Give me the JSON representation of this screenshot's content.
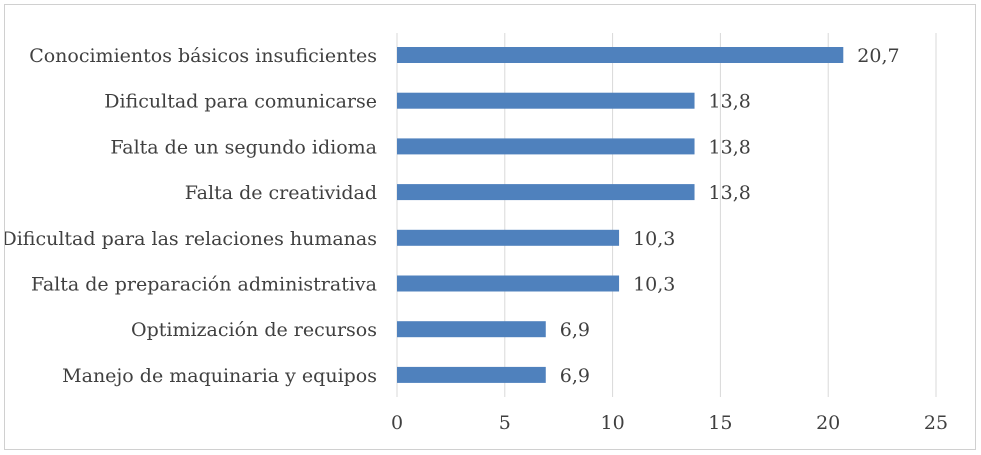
{
  "chart_data": {
    "type": "bar",
    "orientation": "horizontal",
    "categories": [
      "Conocimientos básicos insuficientes",
      "Dificultad para comunicarse",
      "Falta de un segundo idioma",
      "Falta de creatividad",
      "Dificultad para las relaciones humanas",
      "Falta de preparación administrativa",
      "Optimización de recursos",
      "Manejo de maquinaria y equipos"
    ],
    "values": [
      20.7,
      13.8,
      13.8,
      13.8,
      10.3,
      10.3,
      6.9,
      6.9
    ],
    "data_labels": [
      "20,7",
      "13,8",
      "13,8",
      "13,8",
      "10,3",
      "10,3",
      "6,9",
      "6,9"
    ],
    "xlim": [
      0,
      25
    ],
    "xticks": [
      0,
      5,
      10,
      15,
      20,
      25
    ],
    "xtick_labels": [
      "0",
      "5",
      "10",
      "15",
      "20",
      "25"
    ],
    "grid": "vertical",
    "bar_color": "#4f81bd",
    "grid_color": "#d9d9d9",
    "title": "",
    "xlabel": "",
    "ylabel": ""
  }
}
